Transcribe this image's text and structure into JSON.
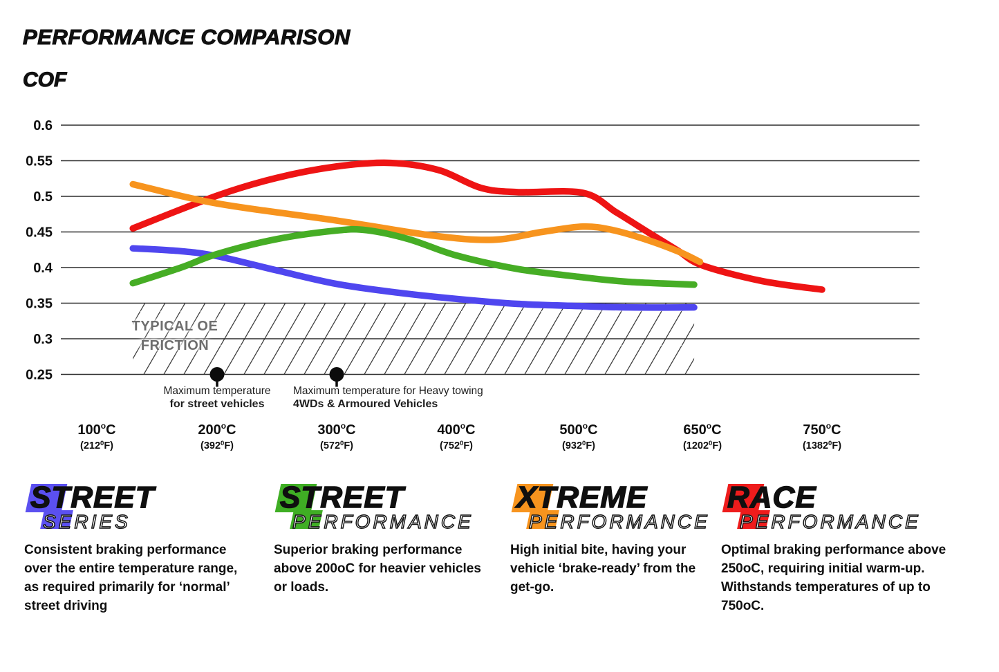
{
  "header": {
    "title": "PERFORMANCE COMPARISON",
    "y_axis_label": "COF"
  },
  "chart_data": {
    "type": "line",
    "title": "PERFORMANCE COMPARISON",
    "ylabel": "COF",
    "ylim": [
      0.25,
      0.6
    ],
    "grid": true,
    "y_ticks": [
      "0.6",
      "0.55",
      "0.5",
      "0.45",
      "0.4",
      "0.35",
      "0.3",
      "0.25"
    ],
    "x_ticks": [
      {
        "c": "100",
        "f": "212"
      },
      {
        "c": "200",
        "f": "392"
      },
      {
        "c": "300",
        "f": "572"
      },
      {
        "c": "400",
        "f": "752"
      },
      {
        "c": "500",
        "f": "932"
      },
      {
        "c": "650",
        "f": "1202"
      },
      {
        "c": "750",
        "f": "1382"
      }
    ],
    "units": {
      "c_sup": "o",
      "c_letter": "C",
      "f_open": "(",
      "f_sup": "0",
      "f_close": "F)"
    },
    "series": [
      {
        "name": "Race Performance",
        "color": "#ee1414",
        "points": [
          [
            130,
            0.455
          ],
          [
            200,
            0.501
          ],
          [
            250,
            0.526
          ],
          [
            300,
            0.542
          ],
          [
            345,
            0.547
          ],
          [
            385,
            0.537
          ],
          [
            420,
            0.512
          ],
          [
            450,
            0.506
          ],
          [
            505,
            0.505
          ],
          [
            545,
            0.478
          ],
          [
            585,
            0.449
          ],
          [
            620,
            0.424
          ],
          [
            650,
            0.403
          ],
          [
            700,
            0.381
          ],
          [
            750,
            0.369
          ]
        ]
      },
      {
        "name": "Xtreme Performance",
        "color": "#f7941e",
        "points": [
          [
            130,
            0.517
          ],
          [
            200,
            0.49
          ],
          [
            300,
            0.466
          ],
          [
            380,
            0.445
          ],
          [
            430,
            0.439
          ],
          [
            470,
            0.45
          ],
          [
            505,
            0.4575
          ],
          [
            540,
            0.453
          ],
          [
            580,
            0.44
          ],
          [
            620,
            0.423
          ],
          [
            647,
            0.408
          ]
        ]
      },
      {
        "name": "Street Series",
        "color": "#4f46ef",
        "points": [
          [
            130,
            0.427
          ],
          [
            170,
            0.423
          ],
          [
            200,
            0.416
          ],
          [
            250,
            0.396
          ],
          [
            300,
            0.377
          ],
          [
            350,
            0.365
          ],
          [
            400,
            0.356
          ],
          [
            450,
            0.349
          ],
          [
            500,
            0.346
          ],
          [
            560,
            0.344
          ],
          [
            640,
            0.344
          ]
        ]
      },
      {
        "name": "Street Performance",
        "color": "#46ad25",
        "points": [
          [
            130,
            0.378
          ],
          [
            170,
            0.4
          ],
          [
            200,
            0.419
          ],
          [
            250,
            0.44
          ],
          [
            300,
            0.452
          ],
          [
            325,
            0.4525
          ],
          [
            360,
            0.44
          ],
          [
            400,
            0.417
          ],
          [
            450,
            0.398
          ],
          [
            500,
            0.387
          ],
          [
            560,
            0.38
          ],
          [
            640,
            0.376
          ]
        ]
      }
    ],
    "oe_zone": {
      "label_lines": [
        "TYPICAL OE",
        "FRICTION"
      ],
      "x_from": 130,
      "x_to": 640,
      "y_from": 0.25,
      "y_to": 0.35
    },
    "markers": [
      {
        "temp": 200,
        "value": 0.25,
        "lines": [
          "Maximum temperature",
          "for street vehicles"
        ]
      },
      {
        "temp": 300,
        "value": 0.25,
        "lines": [
          "Maximum temperature for Heavy towing",
          "4WDs & Armoured Vehicles"
        ]
      }
    ]
  },
  "legend": {
    "items": [
      {
        "word1": "STREET",
        "word2": "SERIES",
        "color": "#5b50f0",
        "description": "Consistent braking performance over the entire temperature range, as required primarily for ‘normal’ street driving"
      },
      {
        "word1": "STREET",
        "word2": "PERFORMANCE",
        "color": "#3fae24",
        "description": "Superior braking performance above 200oC for heavier vehicles or loads."
      },
      {
        "word1": "XTREME",
        "word2": "PERFORMANCE",
        "color": "#f7941e",
        "description": "High initial bite, having your vehicle ‘brake-ready’ from the get-go."
      },
      {
        "word1": "RACE",
        "word2": "PERFORMANCE",
        "color": "#ee1c1c",
        "description": "Optimal braking performance above 250oC, requiring initial warm-up. Withstands temperatures of up to 750oC."
      }
    ]
  }
}
